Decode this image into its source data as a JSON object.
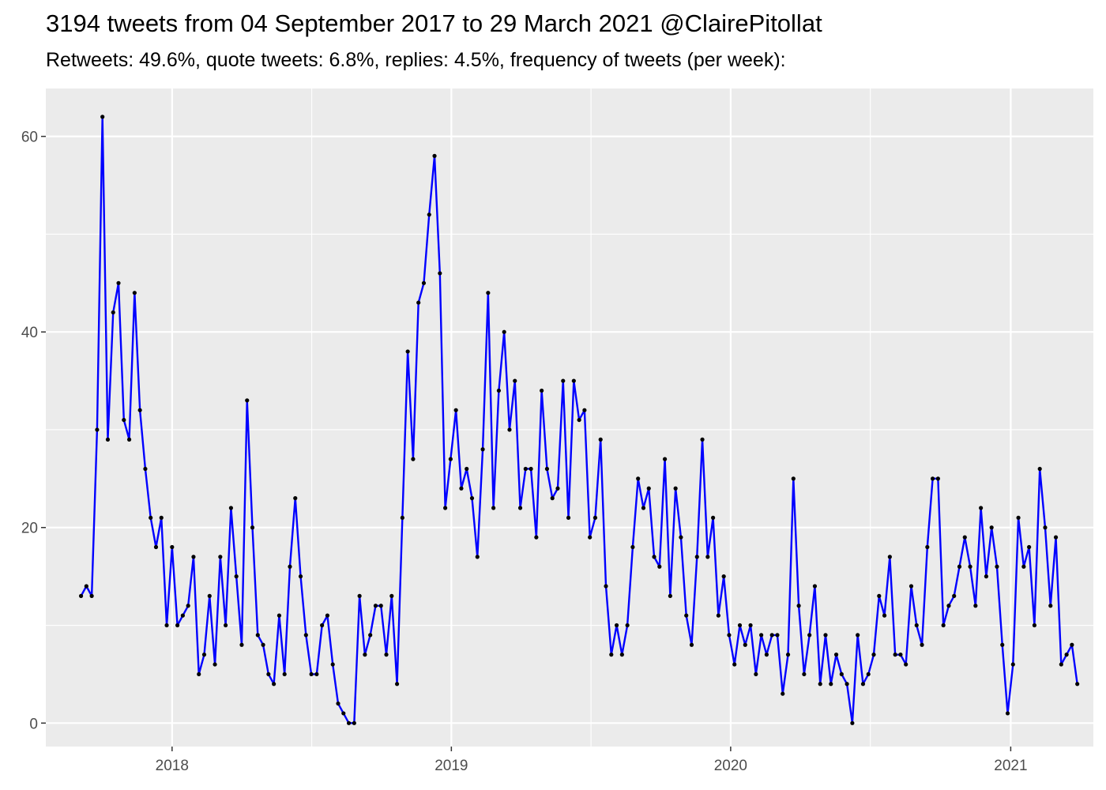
{
  "chart_data": {
    "type": "line",
    "title": "3194 tweets from 04 September 2017 to 29 March 2021 @ClairePitollat",
    "subtitle": "Retweets: 49.6%, quote tweets: 6.8%, replies: 4.5%, frequency of tweets (per week):",
    "xlabel": "",
    "ylabel": "",
    "x_start": "2017-09-04",
    "x_interval": "weekly",
    "xlim": [
      "2017-07-20",
      "2021-04-19"
    ],
    "ylim": [
      -2.4,
      64.9
    ],
    "x_ticks": [
      {
        "label": "2018",
        "date": "2018-01-01"
      },
      {
        "label": "2019",
        "date": "2019-01-01"
      },
      {
        "label": "2020",
        "date": "2020-01-01"
      },
      {
        "label": "2021",
        "date": "2021-01-01"
      }
    ],
    "y_ticks": [
      0,
      20,
      40,
      60
    ],
    "grid": true,
    "line_color": "#0000ff",
    "point_color": "#000000",
    "panel_background": "#ebebeb",
    "series": [
      {
        "values": [
          13,
          14,
          13,
          30,
          62,
          29,
          42,
          45,
          31,
          29,
          44,
          32,
          26,
          21,
          18,
          21,
          10,
          18,
          10,
          11,
          12,
          17,
          5,
          7,
          13,
          6,
          17,
          10,
          22,
          15,
          8,
          33,
          20,
          9,
          8,
          5,
          4,
          11,
          5,
          16,
          23,
          15,
          9,
          5,
          5,
          10,
          11,
          6,
          2,
          1,
          0,
          0,
          13,
          7,
          9,
          12,
          12,
          7,
          13,
          4,
          21,
          38,
          27,
          43,
          45,
          52,
          58,
          46,
          22,
          27,
          32,
          24,
          26,
          23,
          17,
          28,
          44,
          22,
          34,
          40,
          30,
          35,
          22,
          26,
          26,
          19,
          34,
          26,
          23,
          24,
          35,
          21,
          35,
          31,
          32,
          19,
          21,
          29,
          14,
          7,
          10,
          7,
          10,
          18,
          25,
          22,
          24,
          17,
          16,
          27,
          13,
          24,
          19,
          11,
          8,
          17,
          29,
          17,
          21,
          11,
          15,
          9,
          6,
          10,
          8,
          10,
          5,
          9,
          7,
          9,
          9,
          3,
          7,
          25,
          12,
          5,
          9,
          14,
          4,
          9,
          4,
          7,
          5,
          4,
          0,
          9,
          4,
          5,
          7,
          13,
          11,
          17,
          7,
          7,
          6,
          14,
          10,
          8,
          18,
          25,
          25,
          10,
          12,
          13,
          16,
          19,
          16,
          12,
          22,
          15,
          20,
          16,
          8,
          1,
          6,
          21,
          16,
          18,
          10,
          26,
          20,
          12,
          19,
          6,
          7,
          8,
          4
        ]
      }
    ]
  }
}
